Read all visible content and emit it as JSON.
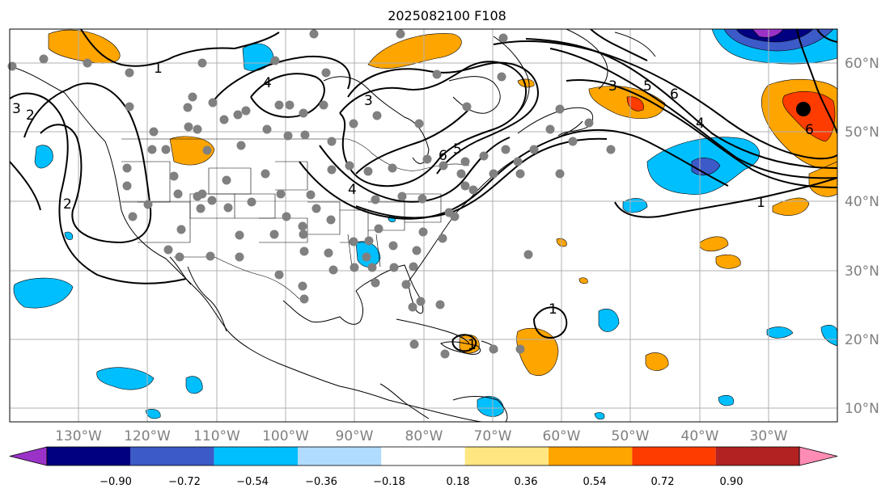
{
  "title": "2025082100 F108",
  "axes": {
    "lat_labels": [
      "60°N",
      "50°N",
      "40°N",
      "30°N",
      "20°N",
      "10°N"
    ],
    "lon_labels": [
      "130°W",
      "120°W",
      "110°W",
      "100°W",
      "90°W",
      "80°W",
      "70°W",
      "60°W",
      "50°W",
      "40°W",
      "30°W"
    ]
  },
  "contour_labels": [
    {
      "text": "1",
      "name": "contour-label-1-pacific"
    },
    {
      "text": "3",
      "name": "contour-label-3-westcoast"
    },
    {
      "text": "2",
      "name": "contour-label-2-westcoast"
    },
    {
      "text": "2",
      "name": "contour-label-2-southwest"
    },
    {
      "text": "4",
      "name": "contour-label-4-canada"
    },
    {
      "text": "3",
      "name": "contour-label-3-hudson"
    },
    {
      "text": "5",
      "name": "contour-label-5-greatlakes"
    },
    {
      "text": "6",
      "name": "contour-label-6-greatlakes"
    },
    {
      "text": "4",
      "name": "contour-label-4-ohio"
    },
    {
      "text": "3",
      "name": "contour-label-3-atlantic"
    },
    {
      "text": "5",
      "name": "contour-label-5-atlantic"
    },
    {
      "text": "6",
      "name": "contour-label-6-atlantic"
    },
    {
      "text": "4",
      "name": "contour-label-4-midatlantic"
    },
    {
      "text": "6",
      "name": "contour-label-6-east"
    },
    {
      "text": "1",
      "name": "contour-label-1-east"
    },
    {
      "text": "1",
      "name": "contour-label-1-caribbean"
    },
    {
      "text": "1",
      "name": "contour-label-1-hispaniola"
    }
  ],
  "colorbar": {
    "ticks": [
      "−0.90",
      "−0.72",
      "−0.54",
      "−0.36",
      "−0.18",
      "0.18",
      "0.36",
      "0.54",
      "0.72",
      "0.90"
    ],
    "colors": [
      "#9b32c8",
      "#000080",
      "#3c5ac8",
      "#00bfff",
      "#afdcff",
      "#ffffff",
      "#ffe680",
      "#ffa500",
      "#ff3c00",
      "#b22222",
      "#ff8cb4"
    ]
  }
}
